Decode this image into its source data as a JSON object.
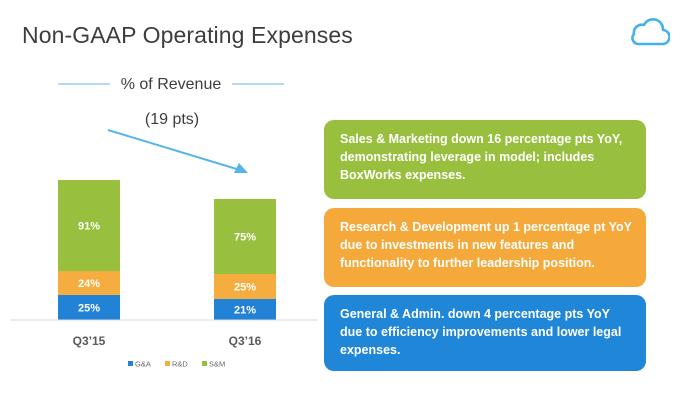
{
  "slide": {
    "title": "Non-GAAP Operating Expenses",
    "logo_icon": "cloud-icon"
  },
  "colors": {
    "ga": "#2182d6",
    "rd": "#f5ad3f",
    "sm": "#98bf3e",
    "arrow": "#57b4e8",
    "rule": "#5fb8e6",
    "text": "#3d3d3d"
  },
  "chart_data": {
    "type": "bar",
    "stacked": true,
    "title": "% of Revenue",
    "annotation": "(19 pts)",
    "categories": [
      "Q3’15",
      "Q3’16"
    ],
    "series": [
      {
        "name": "G&A",
        "key": "ga",
        "values": [
          25,
          21
        ],
        "labels": [
          "25%",
          "21%"
        ]
      },
      {
        "name": "R&D",
        "key": "rd",
        "values": [
          24,
          25
        ],
        "labels": [
          "24%",
          "25%"
        ]
      },
      {
        "name": "S&M",
        "key": "sm",
        "values": [
          91,
          75
        ],
        "labels": [
          "91%",
          "75%"
        ]
      }
    ],
    "totals": [
      140,
      121
    ],
    "legend": [
      "G&A",
      "R&D",
      "S&M"
    ],
    "legend_position": "bottom"
  },
  "callouts": {
    "sm": "Sales & Marketing down 16 percentage pts YoY, demonstrating leverage in model; includes BoxWorks expenses.",
    "rd": "Research & Development up 1 percentage pt YoY due to investments in new features and functionality to further leadership position.",
    "ga": "General & Admin. down 4 percentage pts YoY due to efficiency improvements and lower legal expenses."
  }
}
